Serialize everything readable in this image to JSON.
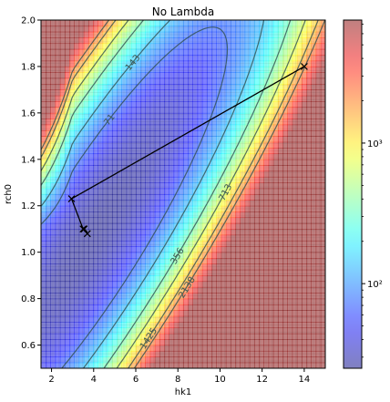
{
  "chart_data": {
    "type": "heatmap",
    "title": "No Lambda",
    "xlabel": "hk1",
    "ylabel": "rch0",
    "xlim": [
      1.5,
      15
    ],
    "ylim": [
      0.5,
      2.0
    ],
    "x_ticks": [
      {
        "value": 2,
        "label": "2"
      },
      {
        "value": 4,
        "label": "4"
      },
      {
        "value": 6,
        "label": "6"
      },
      {
        "value": 8,
        "label": "8"
      },
      {
        "value": 10,
        "label": "10"
      },
      {
        "value": 12,
        "label": "12"
      },
      {
        "value": 14,
        "label": "14"
      }
    ],
    "y_ticks": [
      {
        "value": 0.6,
        "label": "0.6"
      },
      {
        "value": 0.8,
        "label": "0.8"
      },
      {
        "value": 1.0,
        "label": "1.0"
      },
      {
        "value": 1.2,
        "label": "1.2"
      },
      {
        "value": 1.4,
        "label": "1.4"
      },
      {
        "value": 1.6,
        "label": "1.6"
      },
      {
        "value": 1.8,
        "label": "1.8"
      },
      {
        "value": 2.0,
        "label": "2.0"
      }
    ],
    "colormap": "jet",
    "alpha": 0.5,
    "colorbar": {
      "scale": "log",
      "range": [
        25,
        7500
      ],
      "ticks": [
        {
          "value": 100,
          "label": "10²"
        },
        {
          "value": 1000,
          "label": "10³"
        }
      ]
    },
    "surface_model": {
      "min_value": 25,
      "min_location": [
        4.0,
        1.08
      ],
      "description": "objective surface, minimum near hk1≈4, rch0≈1.1"
    },
    "grid_lines": true,
    "contours": [
      {
        "level": 71,
        "label": "71"
      },
      {
        "level": 143,
        "label": "143"
      },
      {
        "level": 356,
        "label": "356"
      },
      {
        "level": 713,
        "label": "713"
      },
      {
        "level": 1425,
        "label": "1425"
      },
      {
        "level": 2138,
        "label": "2138"
      }
    ],
    "contour_color": "#2f4f4f",
    "path": {
      "color": "#000000",
      "marker": "x",
      "points": [
        {
          "x": 14.0,
          "y": 1.8
        },
        {
          "x": 2.95,
          "y": 1.23
        },
        {
          "x": 3.5,
          "y": 1.1
        },
        {
          "x": 3.7,
          "y": 1.08
        },
        {
          "x": 3.55,
          "y": 1.1
        }
      ]
    }
  }
}
